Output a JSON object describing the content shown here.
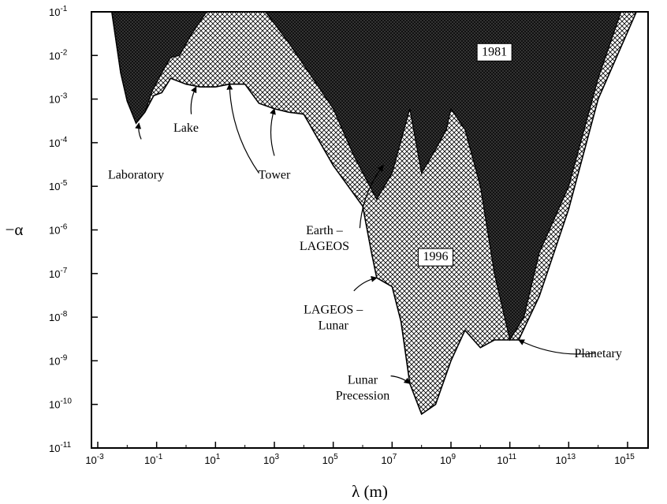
{
  "chart_data": {
    "type": "area",
    "xlabel": "λ (m)",
    "ylabel": "−α",
    "x_scale": "log",
    "y_scale": "log",
    "xlim": [
      0.001,
      3000000000000000.0
    ],
    "ylim": [
      1e-11,
      0.1
    ],
    "x_ticks": [
      0.001,
      0.1,
      10,
      1000,
      100000,
      10000000,
      1000000000,
      100000000000,
      10000000000000,
      1000000000000000
    ],
    "x_tick_labels": [
      {
        "base": "10",
        "exp": "-3"
      },
      {
        "base": "10",
        "exp": "-1"
      },
      {
        "base": "10",
        "exp": "1"
      },
      {
        "base": "10",
        "exp": "3"
      },
      {
        "base": "10",
        "exp": "5"
      },
      {
        "base": "10",
        "exp": "7"
      },
      {
        "base": "10",
        "exp": "9"
      },
      {
        "base": "10",
        "exp": "11"
      },
      {
        "base": "10",
        "exp": "13"
      },
      {
        "base": "10",
        "exp": "15"
      }
    ],
    "y_ticks": [
      1e-11,
      1e-10,
      1e-09,
      1e-08,
      1e-07,
      1e-06,
      1e-05,
      0.0001,
      0.001,
      0.01,
      0.1
    ],
    "y_tick_labels": [
      {
        "base": "10",
        "exp": "-11"
      },
      {
        "base": "10",
        "exp": "-10"
      },
      {
        "base": "10",
        "exp": "-9"
      },
      {
        "base": "10",
        "exp": "-8"
      },
      {
        "base": "10",
        "exp": "-7"
      },
      {
        "base": "10",
        "exp": "-6"
      },
      {
        "base": "10",
        "exp": "-5"
      },
      {
        "base": "10",
        "exp": "-4"
      },
      {
        "base": "10",
        "exp": "-3"
      },
      {
        "base": "10",
        "exp": "-2"
      },
      {
        "base": "10",
        "exp": "-1"
      }
    ],
    "grid": false,
    "series": [
      {
        "name": "1981",
        "fill": "#1a1a1a",
        "pattern": "dark-crosshatch",
        "boundary": [
          [
            0.003,
            0.1
          ],
          [
            0.006,
            0.004
          ],
          [
            0.01,
            0.0009
          ],
          [
            0.02,
            0.00028
          ],
          [
            0.04,
            0.0005
          ],
          [
            0.07,
            0.0015
          ],
          [
            0.15,
            0.004
          ],
          [
            0.3,
            0.009
          ],
          [
            0.6,
            0.01
          ],
          [
            1.5,
            0.03
          ],
          [
            5,
            0.1
          ],
          [
            500,
            0.1
          ],
          [
            3000,
            0.02
          ],
          [
            20000,
            0.003
          ],
          [
            100000,
            0.0006
          ],
          [
            500000,
            5e-05
          ],
          [
            3000000,
            5e-06
          ],
          [
            10000000,
            2e-05
          ],
          [
            40000000,
            0.0006
          ],
          [
            100000000,
            2e-05
          ],
          [
            300000000,
            7e-05
          ],
          [
            700000000,
            0.0002
          ],
          [
            1000000000,
            0.0006
          ],
          [
            3000000000,
            0.0002
          ],
          [
            10000000000,
            1e-05
          ],
          [
            30000000000,
            1e-07
          ],
          [
            100000000000,
            3e-09
          ],
          [
            300000000000,
            1e-08
          ],
          [
            1000000000000,
            3e-07
          ],
          [
            10000000000000,
            1e-05
          ],
          [
            100000000000000,
            0.003
          ],
          [
            600000000000000,
            0.1
          ]
        ]
      },
      {
        "name": "1996",
        "fill": "#ffffff",
        "pattern": "crosshatch",
        "boundary": [
          [
            0.003,
            0.1
          ],
          [
            0.006,
            0.004
          ],
          [
            0.01,
            0.0009
          ],
          [
            0.02,
            0.00028
          ],
          [
            0.04,
            0.0005
          ],
          [
            0.08,
            0.0012
          ],
          [
            0.15,
            0.0014
          ],
          [
            0.3,
            0.003
          ],
          [
            1,
            0.0022
          ],
          [
            3,
            0.0019
          ],
          [
            10,
            0.0019
          ],
          [
            30,
            0.0022
          ],
          [
            100,
            0.0022
          ],
          [
            300,
            0.0008
          ],
          [
            1000,
            0.0006
          ],
          [
            3000,
            0.0005
          ],
          [
            10000,
            0.00045
          ],
          [
            100000,
            3e-05
          ],
          [
            1000000,
            3.5e-06
          ],
          [
            2000000,
            3e-07
          ],
          [
            3000000,
            8e-08
          ],
          [
            10000000,
            5e-08
          ],
          [
            20000000,
            8e-09
          ],
          [
            40000000,
            3e-10
          ],
          [
            100000000,
            6e-11
          ],
          [
            300000000,
            1e-10
          ],
          [
            1000000000,
            1e-09
          ],
          [
            3000000000,
            5e-09
          ],
          [
            10000000000,
            2e-09
          ],
          [
            30000000000,
            3e-09
          ],
          [
            100000000000,
            3e-09
          ],
          [
            200000000000,
            3e-09
          ],
          [
            1000000000000,
            3e-08
          ],
          [
            10000000000000,
            3e-06
          ],
          [
            100000000000000,
            0.001
          ],
          [
            2000000000000000,
            0.1
          ]
        ]
      }
    ],
    "annotations": [
      {
        "text": [
          "1981"
        ],
        "boxed": true,
        "at": [
          30000000000,
          0.01
        ]
      },
      {
        "text": [
          "1996"
        ],
        "boxed": true,
        "at": [
          300000000,
          2e-07
        ]
      },
      {
        "text": [
          "Laboratory"
        ],
        "at": [
          0.02,
          1.5e-05
        ]
      },
      {
        "text": [
          "Lake"
        ],
        "at": [
          1,
          0.00018
        ]
      },
      {
        "text": [
          "Tower"
        ],
        "at": [
          1000,
          1.5e-05
        ]
      },
      {
        "text": [
          "Earth –",
          "LAGEOS"
        ],
        "at": [
          50000,
          8e-07
        ]
      },
      {
        "text": [
          "LAGEOS –",
          "Lunar"
        ],
        "at": [
          100000,
          1.2e-08
        ]
      },
      {
        "text": [
          "Lunar",
          "Precession"
        ],
        "at": [
          1000000,
          3e-10
        ]
      },
      {
        "text": [
          "Planetary"
        ],
        "at": [
          100000000000000,
          1.2e-09
        ]
      }
    ]
  }
}
